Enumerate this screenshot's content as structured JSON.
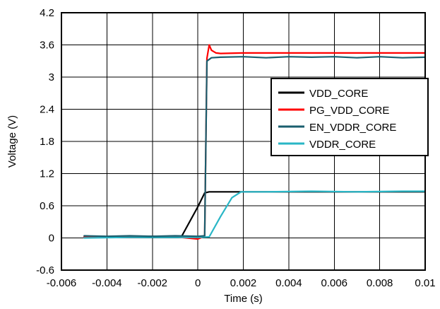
{
  "chart_data": {
    "type": "line",
    "title": "",
    "xlabel": "Time (s)",
    "ylabel": "Voltage (V)",
    "xlim": [
      -0.006,
      0.01
    ],
    "ylim": [
      -0.6,
      4.2
    ],
    "x_ticks": [
      -0.006,
      -0.004,
      -0.002,
      0,
      0.002,
      0.004,
      0.006,
      0.008,
      0.01
    ],
    "x_tick_labels": [
      "-0.006",
      "-0.004",
      "-0.002",
      "0",
      "0.002",
      "0.004",
      "0.006",
      "0.008",
      "0.01"
    ],
    "y_ticks": [
      -0.6,
      0,
      0.6,
      1.2,
      1.8,
      2.4,
      3,
      3.6,
      4.2
    ],
    "y_tick_labels": [
      "-0.6",
      "0",
      "0.6",
      "1.2",
      "1.8",
      "2.4",
      "3",
      "3.6",
      "4.2"
    ],
    "grid": true,
    "legend_position": "right",
    "series": [
      {
        "name": "VDD_CORE",
        "color": "#000000",
        "x": [
          -0.005,
          -0.003,
          -0.0015,
          -0.0007,
          0.0,
          0.0003,
          0.0005,
          0.001,
          0.002,
          0.004,
          0.006,
          0.008,
          0.01
        ],
        "y": [
          0.02,
          0.03,
          0.03,
          0.04,
          0.58,
          0.84,
          0.86,
          0.86,
          0.86,
          0.86,
          0.86,
          0.86,
          0.86
        ]
      },
      {
        "name": "PG_VDD_CORE",
        "color": "#ff0000",
        "x": [
          -0.005,
          -0.003,
          -0.001,
          0.0,
          0.0003,
          0.0004,
          0.0005,
          0.0006,
          0.0008,
          0.001,
          0.002,
          0.004,
          0.006,
          0.008,
          0.01
        ],
        "y": [
          0.02,
          0.01,
          0.02,
          -0.02,
          0.03,
          3.35,
          3.6,
          3.5,
          3.45,
          3.44,
          3.45,
          3.45,
          3.45,
          3.45,
          3.45
        ]
      },
      {
        "name": "EN_VDDR_CORE",
        "color": "#1a5e6e",
        "x": [
          -0.005,
          -0.004,
          -0.003,
          -0.002,
          -0.001,
          0.0,
          0.0003,
          0.0004,
          0.0006,
          0.001,
          0.002,
          0.003,
          0.004,
          0.005,
          0.006,
          0.007,
          0.008,
          0.009,
          0.01
        ],
        "y": [
          0.04,
          0.03,
          0.04,
          0.03,
          0.04,
          0.03,
          0.04,
          3.3,
          3.36,
          3.37,
          3.38,
          3.36,
          3.38,
          3.37,
          3.38,
          3.36,
          3.38,
          3.36,
          3.37
        ]
      },
      {
        "name": "VDDR_CORE",
        "color": "#29b6c6",
        "x": [
          -0.005,
          -0.003,
          -0.001,
          0.0,
          0.0005,
          0.001,
          0.0015,
          0.0019,
          0.003,
          0.005,
          0.007,
          0.009,
          0.01
        ],
        "y": [
          0.0,
          0.01,
          0.01,
          0.01,
          0.02,
          0.4,
          0.75,
          0.86,
          0.86,
          0.87,
          0.86,
          0.87,
          0.87
        ]
      }
    ]
  }
}
